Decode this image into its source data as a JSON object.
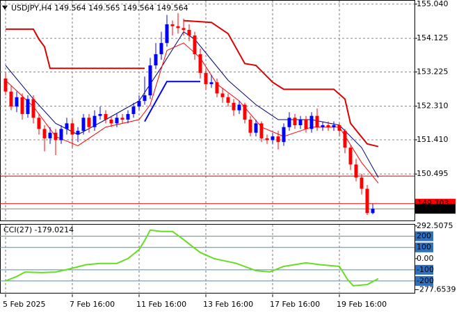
{
  "chart_data": [
    {
      "type": "candlestick",
      "title": "USDJPY,H4  149.564 149.565 149.564 149.564",
      "x": [
        0,
        1,
        2,
        3,
        4,
        5,
        6,
        7,
        8,
        9,
        10,
        11,
        12,
        13,
        14,
        15,
        16,
        17,
        18,
        19,
        20,
        21,
        22,
        23,
        24,
        25,
        26,
        27,
        28,
        29,
        30,
        31,
        32,
        33,
        34,
        35,
        36,
        37,
        38,
        39,
        40,
        41,
        42,
        43,
        44,
        45,
        46,
        47,
        48,
        49,
        50,
        51,
        52,
        53,
        54,
        55,
        56,
        57,
        58,
        59,
        60,
        61,
        62,
        63,
        64,
        65,
        66
      ],
      "open": [
        153.05,
        152.7,
        152.3,
        152.55,
        152.1,
        152.5,
        152.0,
        151.7,
        151.45,
        151.6,
        151.4,
        151.7,
        151.85,
        151.55,
        151.65,
        152.0,
        151.75,
        152.05,
        152.1,
        151.95,
        151.85,
        152.0,
        151.95,
        152.1,
        152.3,
        152.45,
        152.6,
        153.4,
        153.7,
        154.0,
        154.5,
        154.45,
        154.4,
        154.35,
        154.2,
        153.7,
        153.2,
        152.9,
        152.95,
        152.65,
        152.55,
        152.4,
        152.2,
        152.35,
        151.95,
        151.6,
        151.85,
        151.45,
        151.4,
        151.5,
        151.35,
        151.75,
        152.0,
        151.8,
        151.95,
        151.7,
        152.05,
        151.75,
        151.8,
        151.75,
        151.8,
        151.65,
        151.2,
        150.75,
        150.4,
        150.1,
        149.45
      ],
      "high": [
        153.2,
        152.85,
        152.7,
        152.65,
        152.6,
        152.6,
        152.1,
        151.8,
        151.75,
        151.7,
        151.8,
        152.0,
        151.95,
        151.75,
        152.1,
        152.1,
        152.2,
        152.3,
        152.2,
        152.05,
        152.1,
        152.1,
        152.2,
        152.4,
        152.6,
        153.1,
        153.6,
        154.0,
        154.3,
        154.75,
        154.6,
        154.8,
        154.65,
        154.5,
        154.3,
        153.85,
        153.3,
        153.15,
        153.05,
        152.8,
        152.65,
        152.5,
        152.45,
        152.4,
        152.05,
        151.95,
        151.9,
        151.55,
        151.6,
        151.65,
        151.85,
        152.15,
        152.1,
        152.05,
        152.05,
        152.15,
        152.25,
        151.9,
        151.9,
        151.9,
        151.85,
        151.7,
        151.25,
        150.9,
        150.5,
        150.2,
        149.7
      ],
      "low": [
        152.6,
        152.2,
        152.15,
        151.95,
        152.0,
        151.85,
        151.55,
        151.1,
        151.3,
        151.0,
        151.3,
        151.55,
        151.2,
        151.35,
        151.55,
        151.6,
        151.65,
        151.95,
        151.85,
        151.75,
        151.75,
        151.85,
        151.85,
        152.0,
        152.2,
        152.35,
        152.5,
        153.3,
        153.55,
        153.9,
        154.2,
        154.25,
        154.2,
        154.05,
        153.55,
        153.05,
        152.75,
        152.8,
        152.55,
        152.4,
        152.3,
        152.05,
        152.1,
        151.85,
        151.5,
        151.5,
        151.35,
        151.3,
        151.3,
        151.15,
        151.25,
        151.65,
        151.7,
        151.7,
        151.6,
        151.6,
        151.65,
        151.65,
        151.65,
        151.65,
        151.5,
        151.05,
        150.6,
        150.3,
        149.95,
        149.4,
        149.42
      ],
      "close": [
        152.7,
        152.3,
        152.55,
        152.1,
        152.5,
        152.0,
        151.7,
        151.45,
        151.6,
        151.4,
        151.7,
        151.85,
        151.55,
        151.65,
        152.0,
        151.75,
        152.05,
        152.1,
        151.95,
        151.85,
        152.0,
        151.95,
        152.1,
        152.3,
        152.45,
        152.6,
        153.4,
        153.7,
        154.0,
        154.5,
        154.45,
        154.4,
        154.35,
        154.2,
        153.7,
        153.2,
        152.9,
        152.95,
        152.65,
        152.55,
        152.4,
        152.2,
        152.35,
        151.95,
        151.6,
        151.85,
        151.45,
        151.4,
        151.5,
        151.35,
        151.75,
        152.0,
        151.8,
        151.95,
        151.7,
        152.05,
        151.75,
        151.8,
        151.75,
        151.8,
        151.65,
        151.2,
        150.75,
        150.4,
        150.1,
        149.45,
        149.564
      ],
      "up_color": "#0000ff",
      "down_color": "#ff0000",
      "xlim": [
        -1,
        73.5
      ],
      "xticks": [
        {
          "value": 0,
          "label": "5 Feb 2025"
        },
        {
          "value": 12,
          "label": "7 Feb 16:00"
        },
        {
          "value": 24,
          "label": "11 Feb 16:00"
        },
        {
          "value": 36,
          "label": "13 Feb 16:00"
        },
        {
          "value": 48,
          "label": "17 Feb 16:00"
        },
        {
          "value": 60,
          "label": "19 Feb 16:00"
        }
      ],
      "ylim": [
        149.27,
        155.15
      ],
      "yticks": [
        {
          "value": 155.04,
          "label": "155.040"
        },
        154.125,
        153.225,
        {
          "value": 152.31,
          "label": "152.310"
        },
        {
          "value": 151.41,
          "label": "151.410"
        },
        150.495
      ],
      "grid": true,
      "series": [
        {
          "color": "#000080",
          "width": 1,
          "x": [
            0,
            5,
            9,
            13,
            18,
            24,
            28,
            32,
            34,
            37,
            40,
            45,
            49,
            55,
            60,
            64,
            67
          ],
          "values": [
            153.4,
            152.5,
            151.85,
            151.55,
            151.95,
            152.45,
            153.35,
            154.3,
            154.1,
            153.55,
            153.0,
            152.35,
            151.95,
            151.95,
            151.8,
            151.2,
            150.4
          ]
        },
        {
          "color": "#ff0000",
          "width": 1,
          "x": [
            0,
            5,
            9,
            13,
            18,
            24,
            26,
            29,
            32,
            35,
            38,
            42,
            46,
            50,
            55,
            60,
            64,
            67
          ],
          "values": [
            153.0,
            152.3,
            151.5,
            151.25,
            151.75,
            151.95,
            152.35,
            153.8,
            154.0,
            153.6,
            152.9,
            152.45,
            151.75,
            151.5,
            151.75,
            151.75,
            150.8,
            150.25
          ]
        },
        {
          "color": "#dd0000",
          "width": 2,
          "x": [
            0,
            5,
            6,
            7,
            8,
            25,
            null,
            32,
            37,
            40,
            43,
            45,
            48,
            50,
            59,
            61,
            62,
            65,
            67
          ],
          "values": [
            154.37,
            154.37,
            154.1,
            153.9,
            153.32,
            153.32,
            null,
            154.6,
            154.55,
            154.25,
            153.45,
            153.4,
            152.95,
            152.76,
            152.76,
            152.5,
            151.85,
            151.3,
            151.23
          ]
        },
        {
          "color": "#0000ff",
          "width": 2,
          "x": [
            25,
            29,
            35
          ],
          "values": [
            151.9,
            152.97,
            152.97
          ]
        }
      ],
      "hlines": [
        {
          "value": 150.44,
          "color": "#c00000"
        },
        {
          "value": 149.703,
          "color": "#ff0000"
        },
        {
          "value": 149.564,
          "color": "#808080",
          "box": "#000000"
        }
      ]
    },
    {
      "type": "line",
      "title": "CCI(27) -179.0214",
      "x": [
        0,
        2,
        3.5,
        6.5,
        9,
        11.5,
        14.5,
        17,
        20,
        22,
        24,
        25,
        26,
        28,
        30,
        31.5,
        35,
        37.5,
        41.5,
        45,
        47.5,
        50,
        54,
        56.5,
        60,
        61.5,
        62.5,
        65,
        67
      ],
      "values": [
        -200,
        -160,
        -120,
        -125,
        -120,
        -92,
        -54,
        -43,
        -43,
        0,
        81,
        162,
        255,
        243,
        243,
        189,
        54,
        0,
        -43,
        -108,
        -119,
        -70,
        -38,
        -54,
        -70,
        -189,
        -243,
        -232,
        -179
      ],
      "color": "#66dd22",
      "xlim": [
        -1,
        73.5
      ],
      "ylim": [
        -300,
        310
      ],
      "yticks": [
        292.5075,
        200,
        100,
        {
          "value": 0,
          "label": "0.00"
        },
        -100,
        -200,
        -277.6539
      ],
      "levels": [
        200,
        100,
        -100,
        -200
      ],
      "level_color": "#4a8fa8",
      "box_color": "#2f6fc0"
    }
  ]
}
